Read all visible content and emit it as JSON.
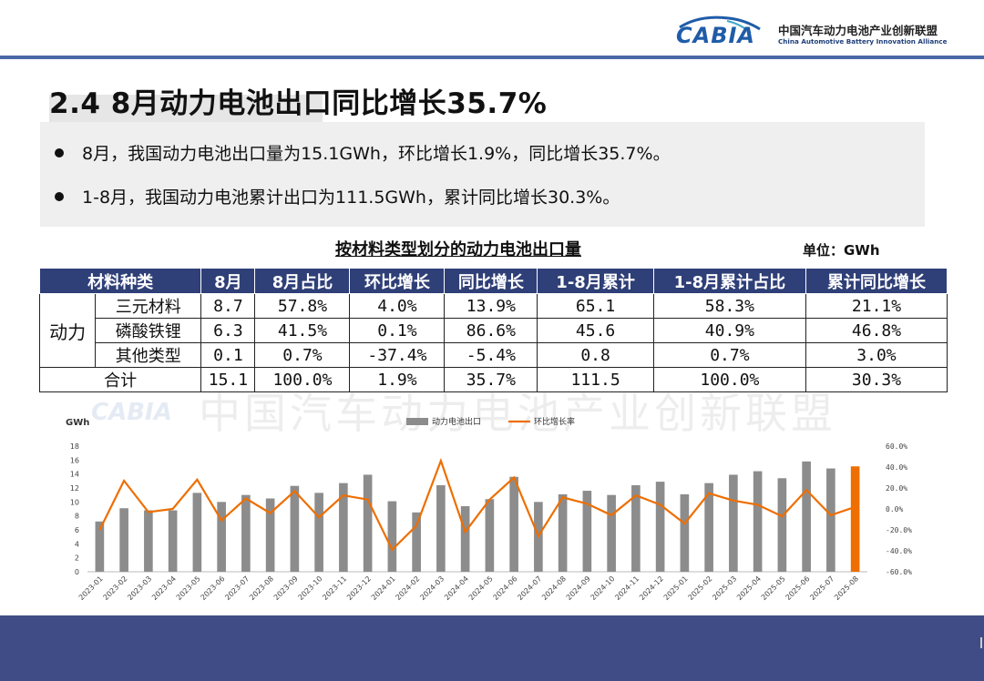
{
  "header": {
    "logo_text": "CABIA",
    "org_cn": "中国汽车动力电池产业创新联盟",
    "org_en": "China Automotive Battery Innovation Alliance"
  },
  "page_title": "2.4 8月动力电池出口同比增长35.7%",
  "bullets": [
    "8月，我国动力电池出口量为15.1GWh，环比增长1.9%，同比增长35.7%。",
    "1-8月，我国动力电池累计出口为111.5GWh，累计同比增长30.3%。"
  ],
  "table": {
    "title": "按材料类型划分的动力电池出口量",
    "unit": "单位：GWh",
    "headers": [
      "材料种类",
      "8月",
      "8月占比",
      "环比增长",
      "同比增长",
      "1-8月累计",
      "1-8月累计占比",
      "累计同比增长"
    ],
    "group_label": "动力",
    "rows": [
      [
        "三元材料",
        "8.7",
        "57.8%",
        "4.0%",
        "13.9%",
        "65.1",
        "58.3%",
        "21.1%"
      ],
      [
        "磷酸铁锂",
        "6.3",
        "41.5%",
        "0.1%",
        "86.6%",
        "45.6",
        "40.9%",
        "46.8%"
      ],
      [
        "其他类型",
        "0.1",
        "0.7%",
        "-37.4%",
        "-5.4%",
        "0.8",
        "0.7%",
        "3.0%"
      ]
    ],
    "total": [
      "合计",
      "15.1",
      "100.0%",
      "1.9%",
      "35.7%",
      "111.5",
      "100.0%",
      "30.3%"
    ]
  },
  "watermark": "中国汽车动力电池产业创新联盟",
  "chart_data": {
    "type": "bar",
    "y_unit_label": "GWh",
    "x": [
      "2023-01",
      "2023-02",
      "2023-03",
      "2023-04",
      "2023-05",
      "2023-06",
      "2023-07",
      "2023-08",
      "2023-09",
      "2023-10",
      "2023-11",
      "2023-12",
      "2024-01",
      "2024-02",
      "2024-03",
      "2024-04",
      "2024-05",
      "2024-06",
      "2024-07",
      "2024-08",
      "2024-09",
      "2024-10",
      "2024-11",
      "2024-12",
      "2025-01",
      "2025-02",
      "2025-03",
      "2025-04",
      "2025-05",
      "2025-06",
      "2025-07",
      "2025-08"
    ],
    "series": [
      {
        "name": "动力电池出口",
        "kind": "bar",
        "axis": "left",
        "color": "#8c8c8c",
        "highlight_last_color": "#ee6e00",
        "values": [
          7.2,
          9.1,
          8.8,
          8.8,
          11.3,
          10.0,
          11.0,
          10.5,
          12.3,
          11.3,
          12.7,
          13.9,
          10.1,
          8.5,
          12.4,
          9.4,
          10.4,
          13.6,
          10.0,
          11.1,
          11.6,
          11.0,
          12.4,
          12.9,
          11.1,
          12.7,
          13.9,
          14.4,
          13.4,
          15.8,
          14.8,
          15.1
        ]
      },
      {
        "name": "环比增长率",
        "kind": "line",
        "axis": "right",
        "color": "#ee6e00",
        "values": [
          -20.0,
          27.0,
          -3.0,
          0.0,
          28.0,
          -11.0,
          10.0,
          -4.0,
          17.0,
          -8.0,
          13.0,
          9.0,
          -39.0,
          -16.0,
          46.0,
          -22.0,
          9.0,
          30.0,
          -26.0,
          11.0,
          5.0,
          -6.0,
          13.0,
          4.0,
          -14.0,
          15.0,
          8.0,
          4.0,
          -7.0,
          18.0,
          -6.0,
          1.9
        ]
      }
    ],
    "ylim_left": [
      0,
      18
    ],
    "yticks_left": [
      "0",
      "2",
      "4",
      "6",
      "8",
      "10",
      "12",
      "14",
      "16",
      "18"
    ],
    "ylim_right": [
      -60,
      60
    ],
    "yticks_right": [
      "-60.0%",
      "-40.0%",
      "-20.0%",
      "0.0%",
      "20.0%",
      "40.0%",
      "60.0%"
    ],
    "legend_position": "top-center",
    "grid": false
  }
}
